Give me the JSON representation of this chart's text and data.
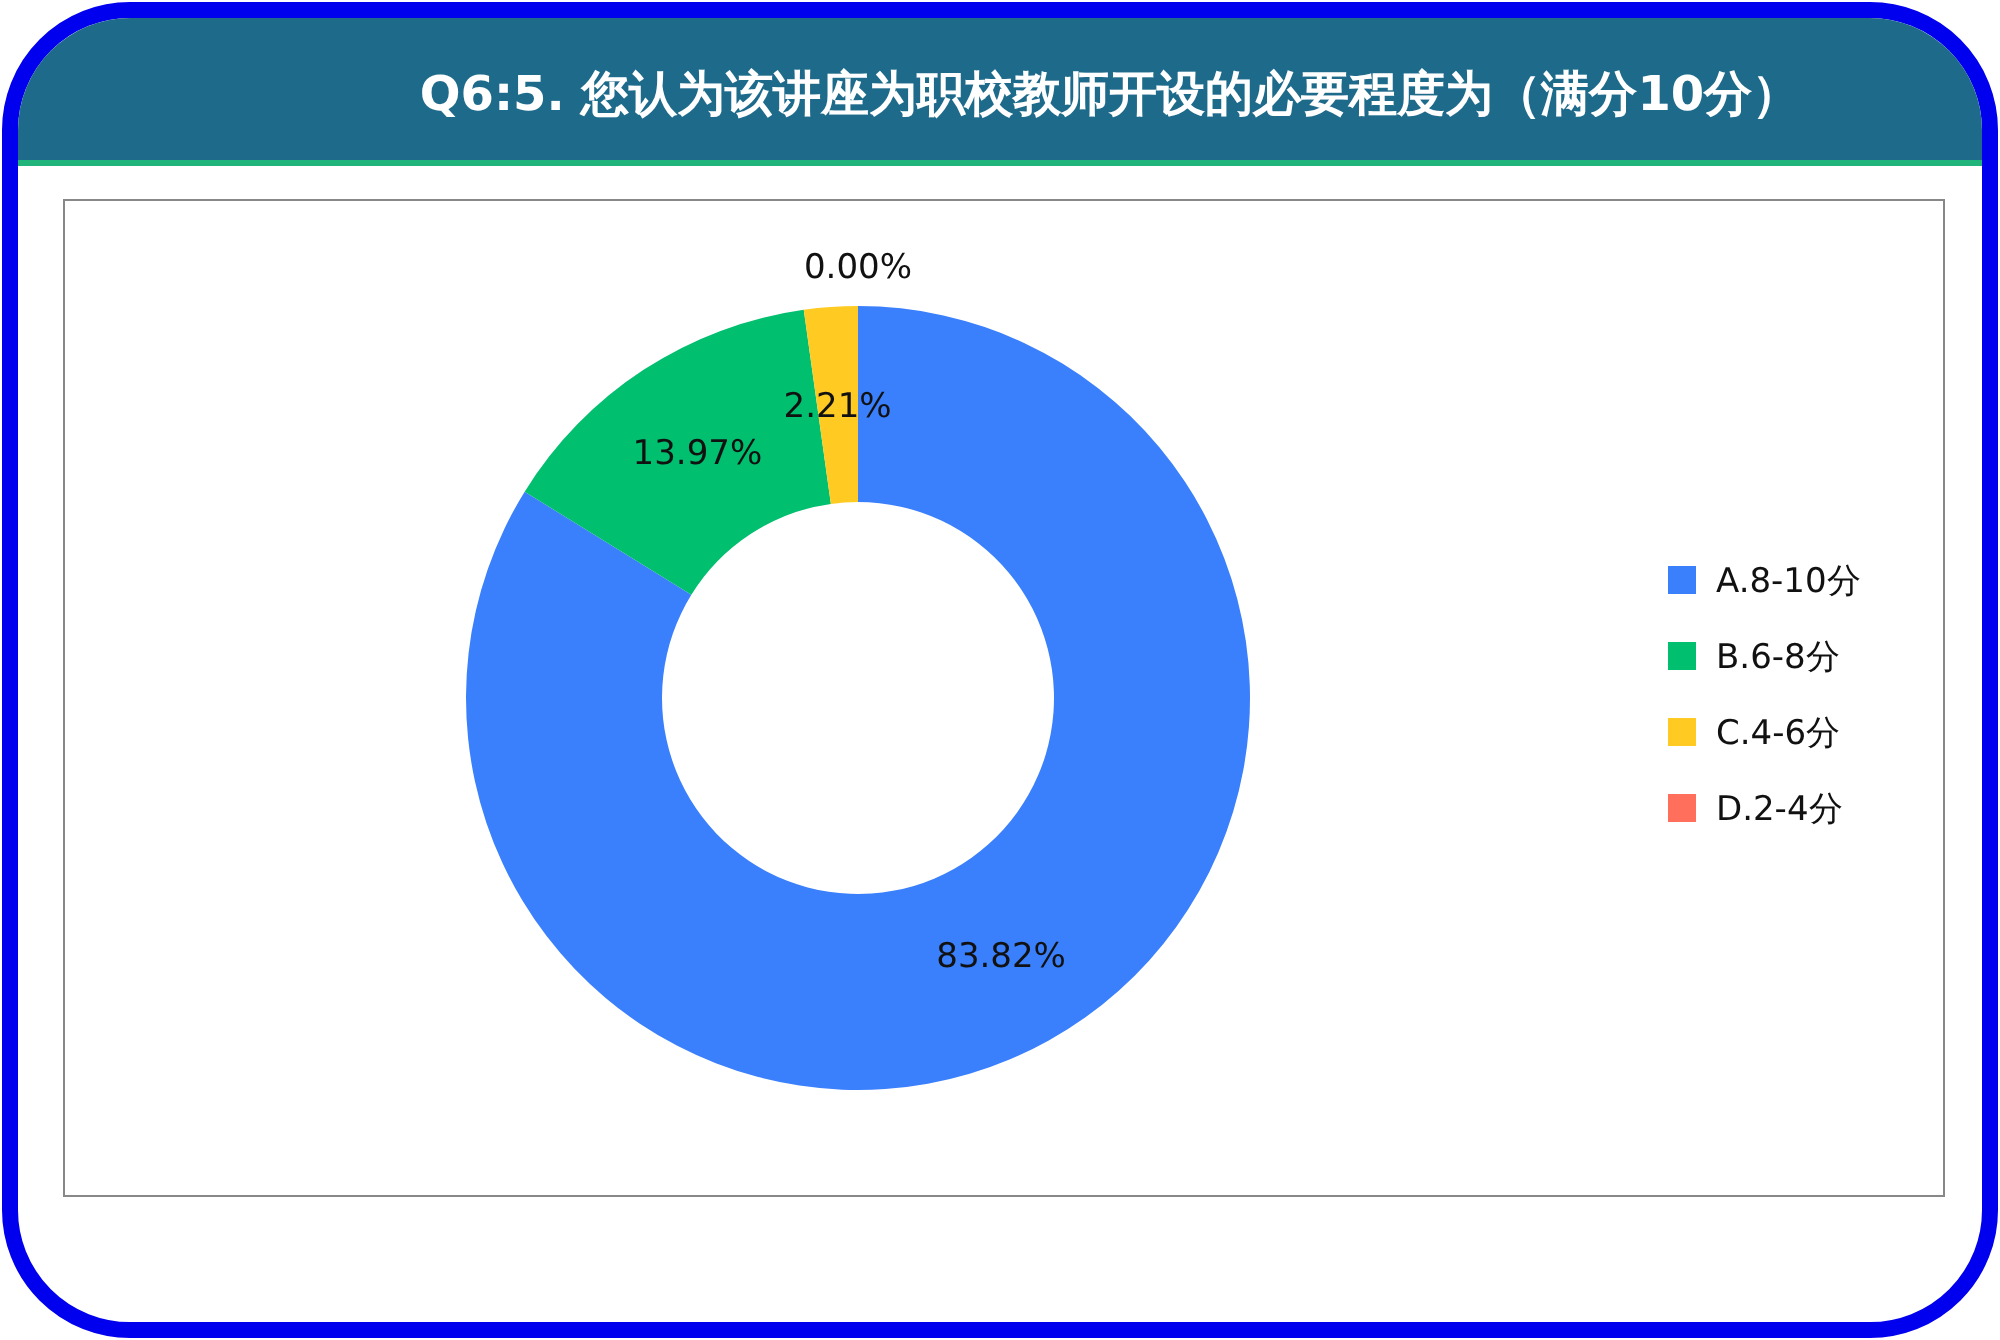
{
  "chart_data": {
    "type": "donut",
    "title": "Q6:5. 您认为该讲座为职校教师开设的必要程度为（满分10分）",
    "categories": [
      "A.8-10分",
      "B.6-8分",
      "C.4-6分",
      "D.2-4分"
    ],
    "values": [
      83.82,
      13.97,
      2.21,
      0.0
    ],
    "colors": [
      "#3a7ffc",
      "#00bf6f",
      "#ffcb23",
      "#ff6f5b"
    ],
    "value_labels": [
      "83.82%",
      "13.97%",
      "2.21%",
      "0.00%"
    ],
    "legend": "right"
  }
}
